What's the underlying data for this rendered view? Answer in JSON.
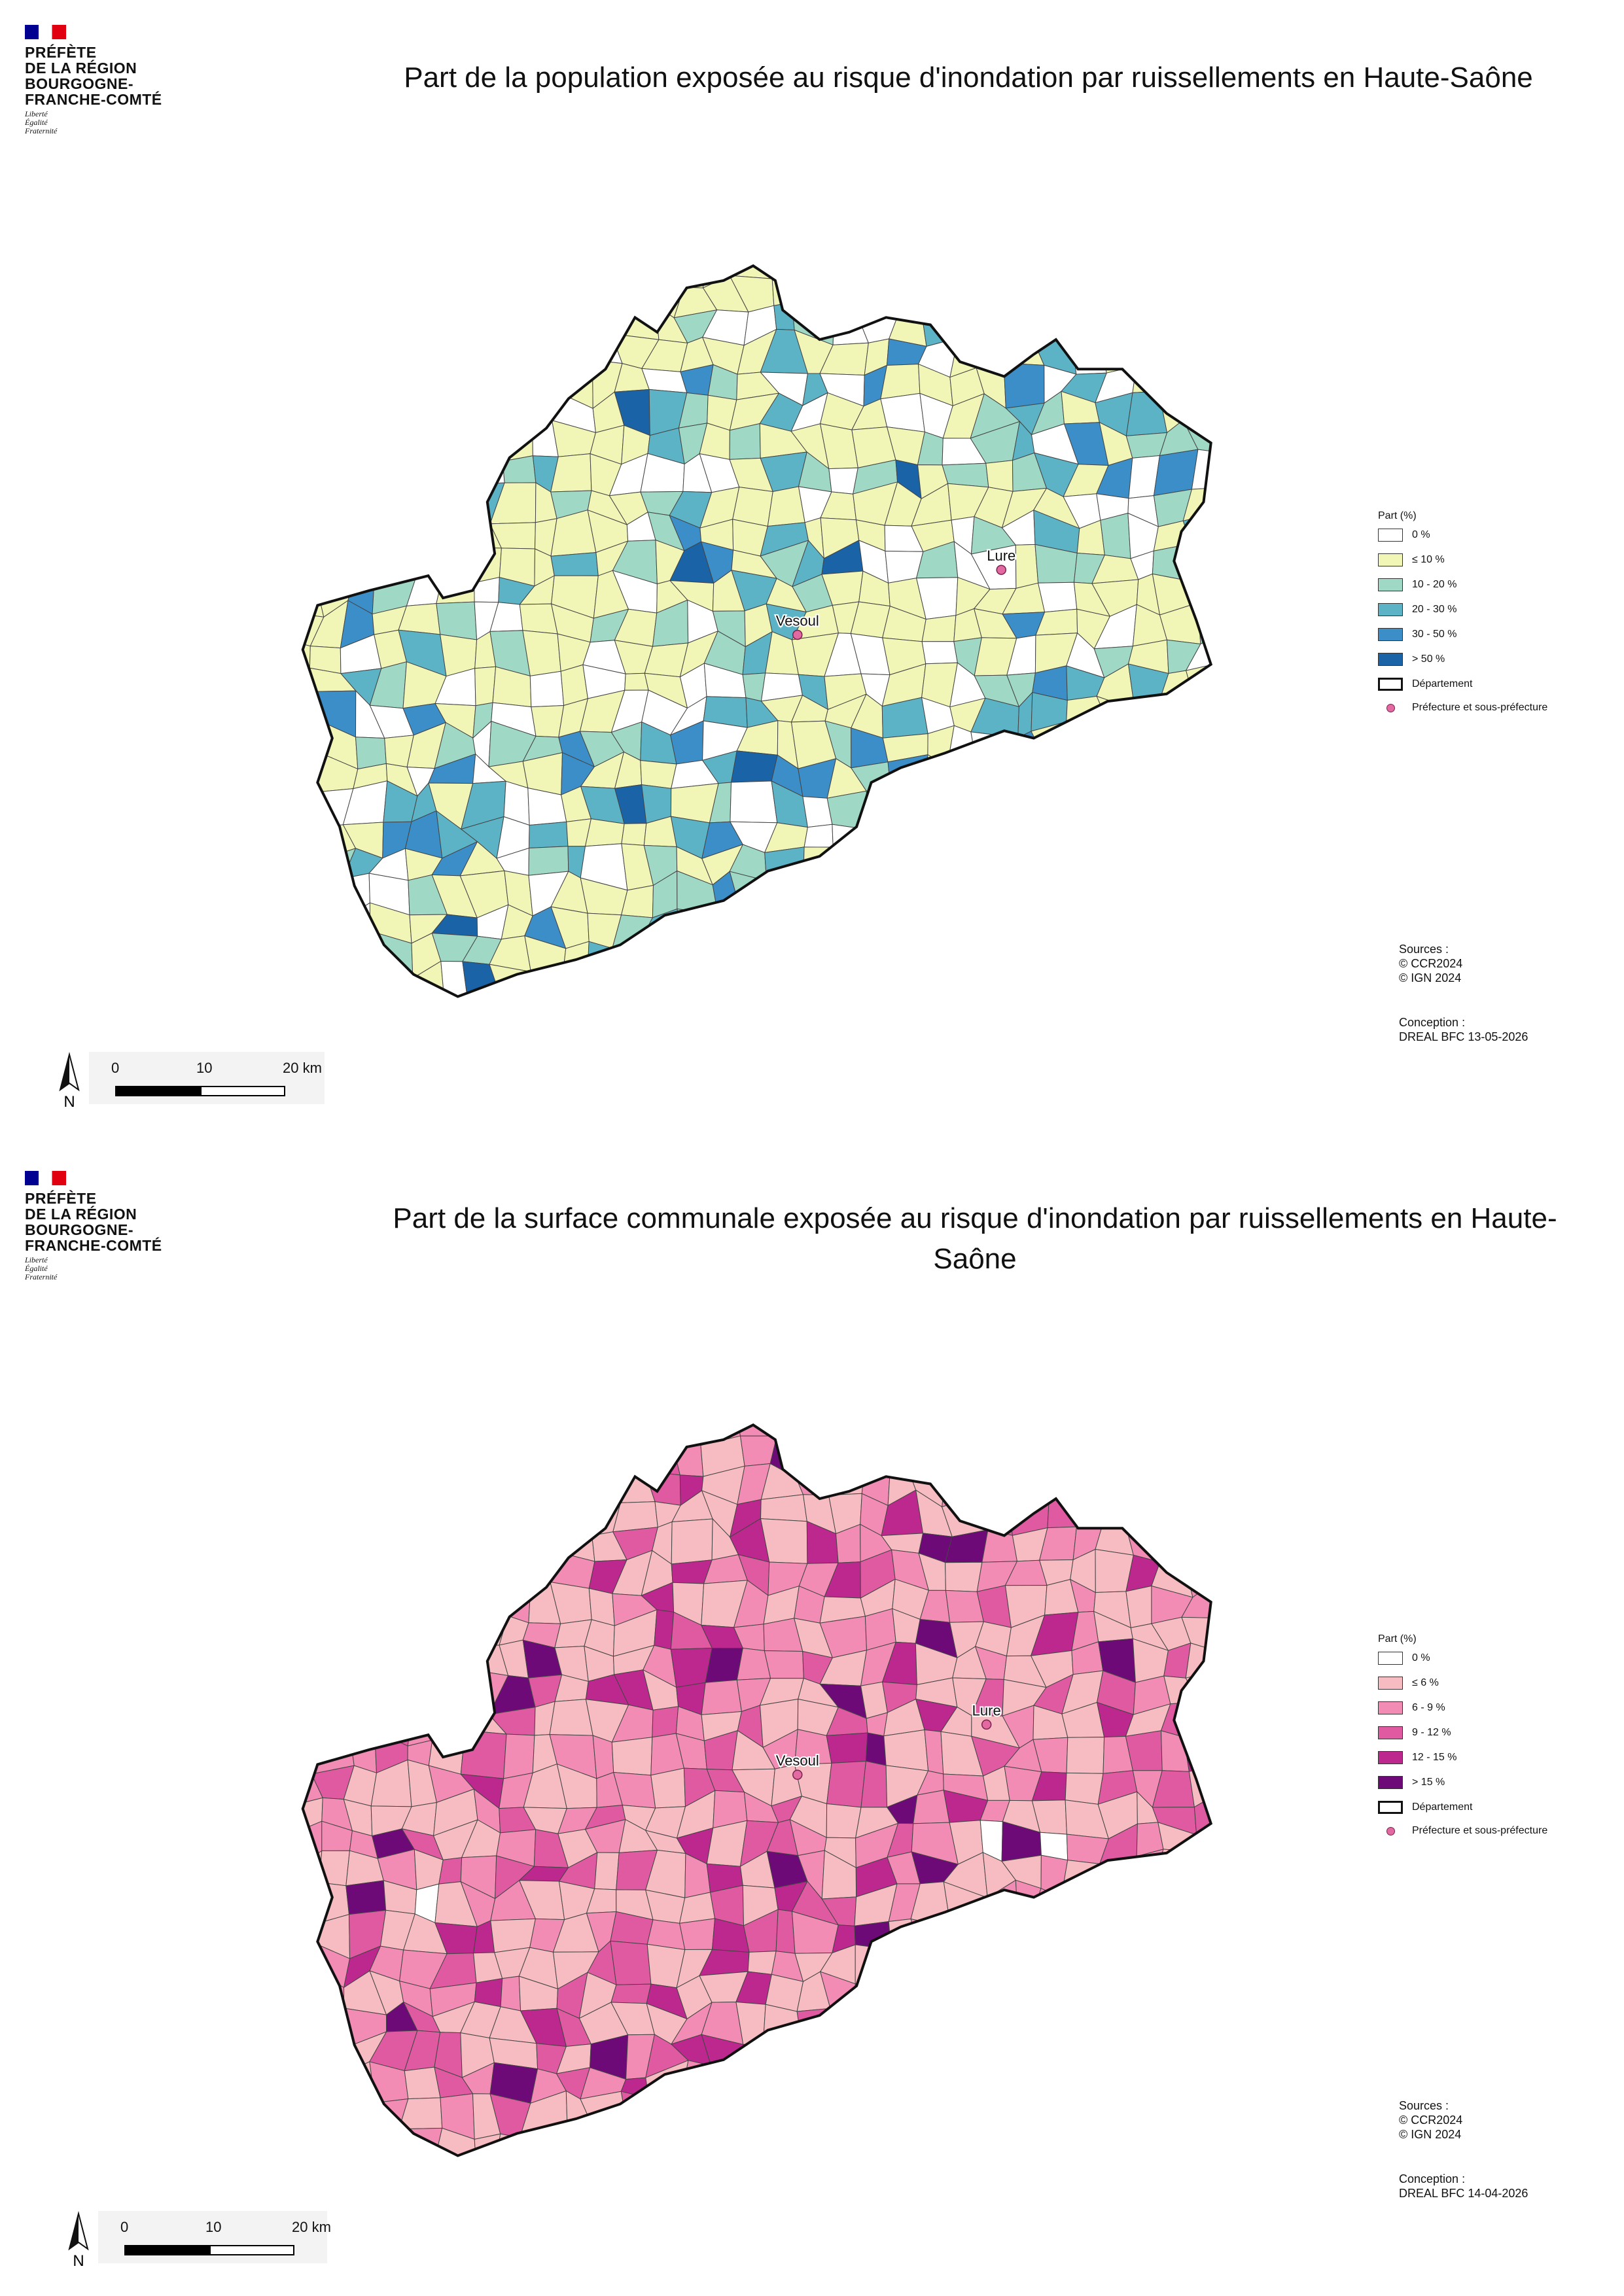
{
  "panels": [
    {
      "logo": {
        "lines": [
          "PRÉFÈTE",
          "DE LA RÉGION",
          "BOURGOGNE-",
          "FRANCHE-COMTÉ"
        ],
        "motto": [
          "Liberté",
          "Égalité",
          "Fraternité"
        ]
      },
      "title": "Part de la population exposée au risque d'inondation par ruissellements en Haute-Saône",
      "legend": {
        "title": "Part (%)",
        "items": [
          {
            "label": "0 %",
            "color": "#ffffff"
          },
          {
            "label": "≤ 10 %",
            "color": "#f1f5b6"
          },
          {
            "label": "10 - 20 %",
            "color": "#9fd8c5"
          },
          {
            "label": "20 - 30 %",
            "color": "#5cb3c6"
          },
          {
            "label": "30 - 50 %",
            "color": "#3b8ec8"
          },
          {
            "label": "> 50 %",
            "color": "#1b63a7"
          }
        ],
        "department": "Département",
        "prefecture": "Préfecture et sous-préfecture"
      },
      "cities": [
        "Vesoul",
        "Lure"
      ],
      "sources": [
        "Sources :",
        "© CCR2024",
        "© IGN 2024"
      ],
      "conception": [
        "Conception :",
        "DREAL BFC 13-05-2026"
      ],
      "scale": [
        "0",
        "10",
        "20 km"
      ],
      "north": "N"
    },
    {
      "logo": {
        "lines": [
          "PRÉFÈTE",
          "DE LA RÉGION",
          "BOURGOGNE-",
          "FRANCHE-COMTÉ"
        ],
        "motto": [
          "Liberté",
          "Égalité",
          "Fraternité"
        ]
      },
      "title": "Part de la surface communale exposée au risque d'inondation par ruissellements en Haute-Saône",
      "legend": {
        "title": "Part (%)",
        "items": [
          {
            "label": "0 %",
            "color": "#ffffff"
          },
          {
            "label": "≤ 6 %",
            "color": "#f7bcc1"
          },
          {
            "label": "6 - 9 %",
            "color": "#f38cb4"
          },
          {
            "label": "9 - 12 %",
            "color": "#e05aa2"
          },
          {
            "label": "12 - 15 %",
            "color": "#bd288e"
          },
          {
            "label": "> 15 %",
            "color": "#6d0a77"
          }
        ],
        "department": "Département",
        "prefecture": "Préfecture et sous-préfecture"
      },
      "cities": [
        "Vesoul",
        "Lure"
      ],
      "sources": [
        "Sources :",
        "© CCR2024",
        "© IGN 2024"
      ],
      "conception": [
        "Conception :",
        "DREAL BFC 14-04-2026"
      ],
      "scale": [
        "0",
        "10",
        "20 km"
      ],
      "north": "N"
    }
  ]
}
